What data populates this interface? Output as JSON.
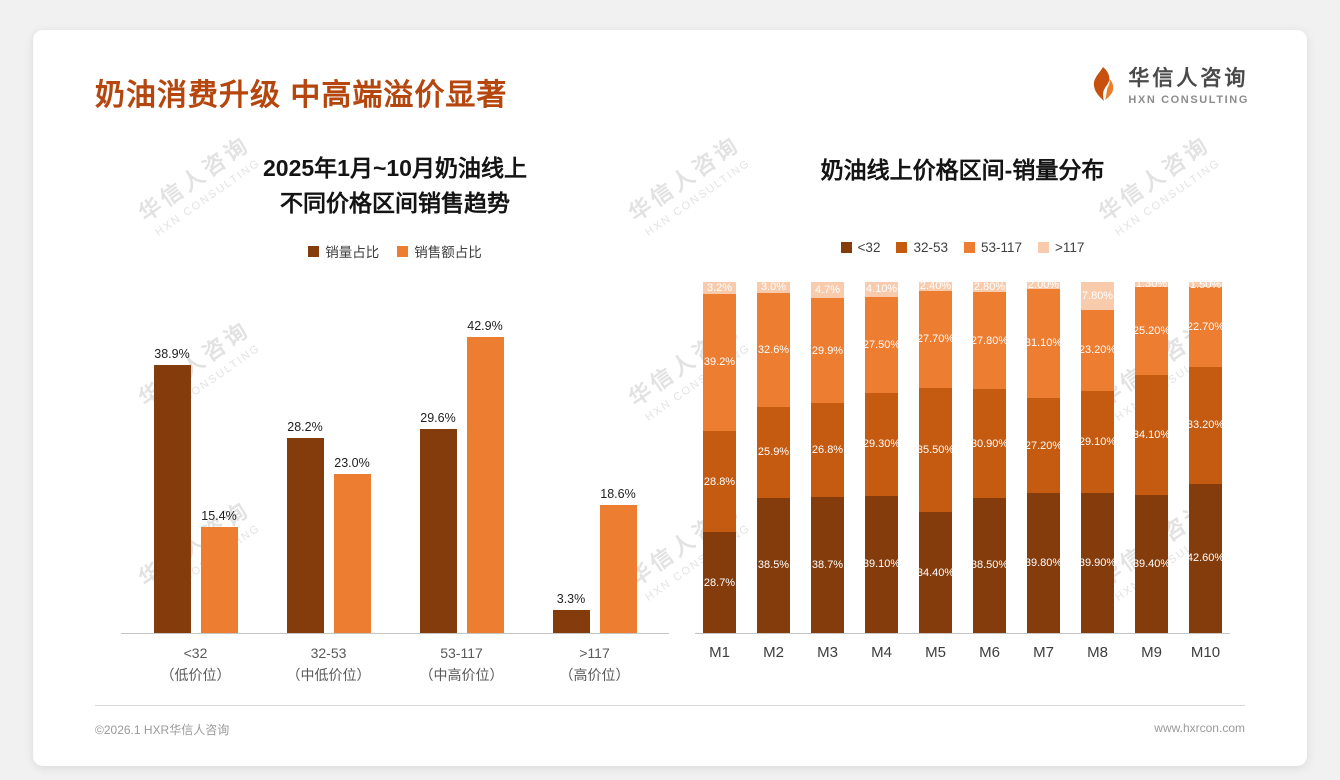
{
  "header": {
    "title": "奶油消费升级 中高端溢价显著",
    "logo": {
      "name": "华信人咨询",
      "subtitle": "HXN CONSULTING"
    }
  },
  "watermark": {
    "line1": "华信人咨询",
    "line2": "HXN CONSULTING"
  },
  "footer": {
    "copyright": "©2026.1 HXR华信人咨询",
    "website": "www.hxrcon.com"
  },
  "colors": {
    "title_accent": "#B5470E",
    "series_dark_brown": "#843C0C",
    "series_mid_brown": "#C55A11",
    "series_orange": "#ED7D31",
    "series_light_peach": "#F8CBAD"
  },
  "chart_data": [
    {
      "type": "bar",
      "title_lines": [
        "2025年1月~10月奶油线上",
        "不同价格区间销售趋势"
      ],
      "categories": [
        [
          "<32",
          "（低价位）"
        ],
        [
          "32-53",
          "（中低价位）"
        ],
        [
          "53-117",
          "（中高价位）"
        ],
        [
          ">117",
          "（高价位）"
        ]
      ],
      "series": [
        {
          "name": "销量占比",
          "color": "#843C0C",
          "values": [
            38.9,
            28.2,
            29.6,
            3.3
          ],
          "labels": [
            "38.9%",
            "28.2%",
            "29.6%",
            "3.3%"
          ]
        },
        {
          "name": "销售额占比",
          "color": "#ED7D31",
          "values": [
            15.4,
            23.0,
            42.9,
            18.6
          ],
          "labels": [
            "15.4%",
            "23.0%",
            "42.9%",
            "18.6%"
          ]
        }
      ],
      "ylim": [
        0,
        45
      ],
      "grid": false,
      "legend_position": "top"
    },
    {
      "type": "bar",
      "stacked": true,
      "stacked_total": 100,
      "title": "奶油线上价格区间-销量分布",
      "categories": [
        "M1",
        "M2",
        "M3",
        "M4",
        "M5",
        "M6",
        "M7",
        "M8",
        "M9",
        "M10"
      ],
      "series": [
        {
          "name": "<32",
          "color": "#843C0C",
          "values": [
            28.7,
            38.5,
            38.7,
            39.1,
            34.4,
            38.5,
            39.8,
            39.9,
            39.4,
            42.6
          ],
          "labels": [
            "28.7%",
            "38.5%",
            "38.7%",
            "39.10%",
            "34.40%",
            "38.50%",
            "39.80%",
            "39.90%",
            "39.40%",
            "42.60%"
          ]
        },
        {
          "name": "32-53",
          "color": "#C55A11",
          "values": [
            28.8,
            25.9,
            26.8,
            29.3,
            35.5,
            30.9,
            27.2,
            29.1,
            34.1,
            33.2
          ],
          "labels": [
            "28.8%",
            "25.9%",
            "26.8%",
            "29.30%",
            "35.50%",
            "30.90%",
            "27.20%",
            "29.10%",
            "34.10%",
            "33.20%"
          ]
        },
        {
          "name": "53-117",
          "color": "#ED7D31",
          "values": [
            39.2,
            32.6,
            29.9,
            27.5,
            27.7,
            27.8,
            31.1,
            23.2,
            25.2,
            22.7
          ],
          "labels": [
            "39.2%",
            "32.6%",
            "29.9%",
            "27.50%",
            "27.70%",
            "27.80%",
            "31.10%",
            "23.20%",
            "25.20%",
            "22.70%"
          ]
        },
        {
          "name": ">117",
          "color": "#F8CBAD",
          "values": [
            3.2,
            3.0,
            4.7,
            4.1,
            2.4,
            2.8,
            2.0,
            7.8,
            1.3,
            1.5
          ],
          "labels": [
            "3.2%",
            "3.0%",
            "4.7%",
            "4.10%",
            "2.40%",
            "2.80%",
            "2.00%",
            "7.80%",
            "1.30%",
            "1.50%"
          ]
        }
      ],
      "ylim": [
        0,
        100
      ],
      "grid": false,
      "legend_position": "top"
    }
  ]
}
